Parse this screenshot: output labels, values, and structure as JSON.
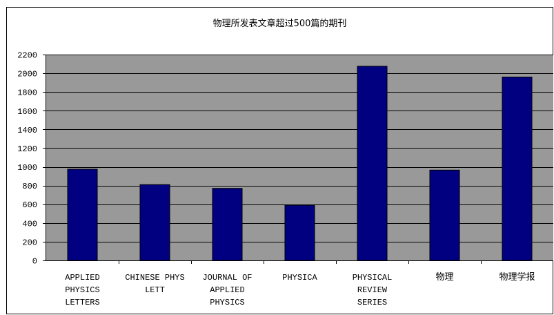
{
  "chart_data": {
    "type": "bar",
    "title": "物理所发表文章超过500篇的期刊",
    "xlabel": "",
    "ylabel": "",
    "ylim": [
      0,
      2200
    ],
    "ytick_step": 200,
    "yticks": [
      "0",
      "200",
      "400",
      "600",
      "800",
      "1000",
      "1200",
      "1400",
      "1600",
      "1800",
      "2000",
      "2200"
    ],
    "grid": true,
    "legend": "none",
    "categories": [
      [
        "APPLIED",
        "PHYSICS",
        "LETTERS"
      ],
      [
        "CHINESE PHYS",
        "LETT"
      ],
      [
        "JOURNAL OF",
        "APPLIED",
        "PHYSICS"
      ],
      [
        "PHYSICA"
      ],
      [
        "PHYSICAL",
        "REVIEW",
        "SERIES"
      ],
      [
        "物理"
      ],
      [
        "物理学报"
      ]
    ],
    "values": [
      975,
      810,
      770,
      590,
      2075,
      965,
      1960
    ],
    "colors": {
      "bar": "#000080",
      "plot_background": "#999999",
      "gridline": "#000000"
    }
  }
}
